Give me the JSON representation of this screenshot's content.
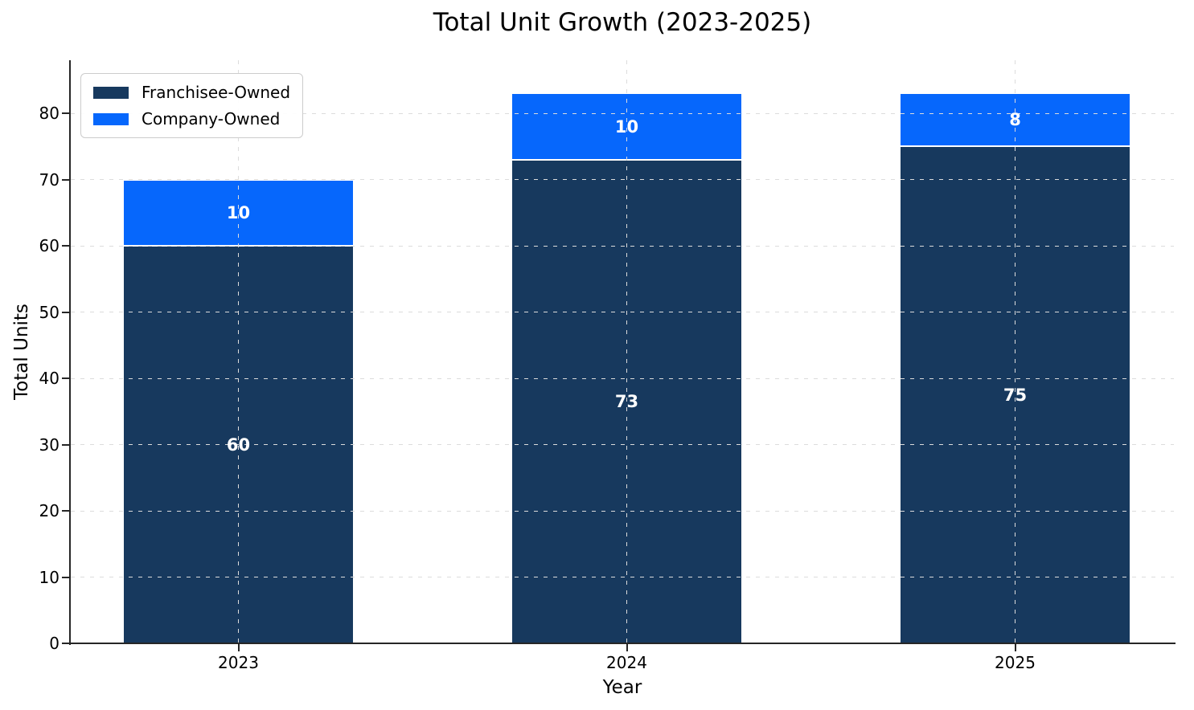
{
  "chart_data": {
    "type": "bar",
    "stacked": true,
    "title": "Total Unit Growth (2023-2025)",
    "xlabel": "Year",
    "ylabel": "Total Units",
    "categories": [
      "2023",
      "2024",
      "2025"
    ],
    "series": [
      {
        "name": "Franchisee-Owned",
        "values": [
          60,
          73,
          75
        ],
        "color": "#17395e"
      },
      {
        "name": "Company-Owned",
        "values": [
          10,
          10,
          8
        ],
        "color": "#0667fc"
      }
    ],
    "stack_totals": [
      70,
      83,
      83
    ],
    "bar_value_labels": [
      [
        "60",
        "73",
        "75"
      ],
      [
        "10",
        "10",
        "8"
      ]
    ],
    "bar_label_color": "#ffffff",
    "bar_edge_color": "#ffffff",
    "ylim": [
      0,
      88
    ],
    "yticks": [
      0,
      10,
      20,
      30,
      40,
      50,
      60,
      70,
      80
    ],
    "grid": {
      "on": true,
      "line_style": "dashed",
      "color": "#dcdcdc"
    },
    "legend": {
      "position": "upper-left"
    },
    "axis_color": "#262626",
    "text_color": "#000000",
    "background_color": "#ffffff"
  }
}
